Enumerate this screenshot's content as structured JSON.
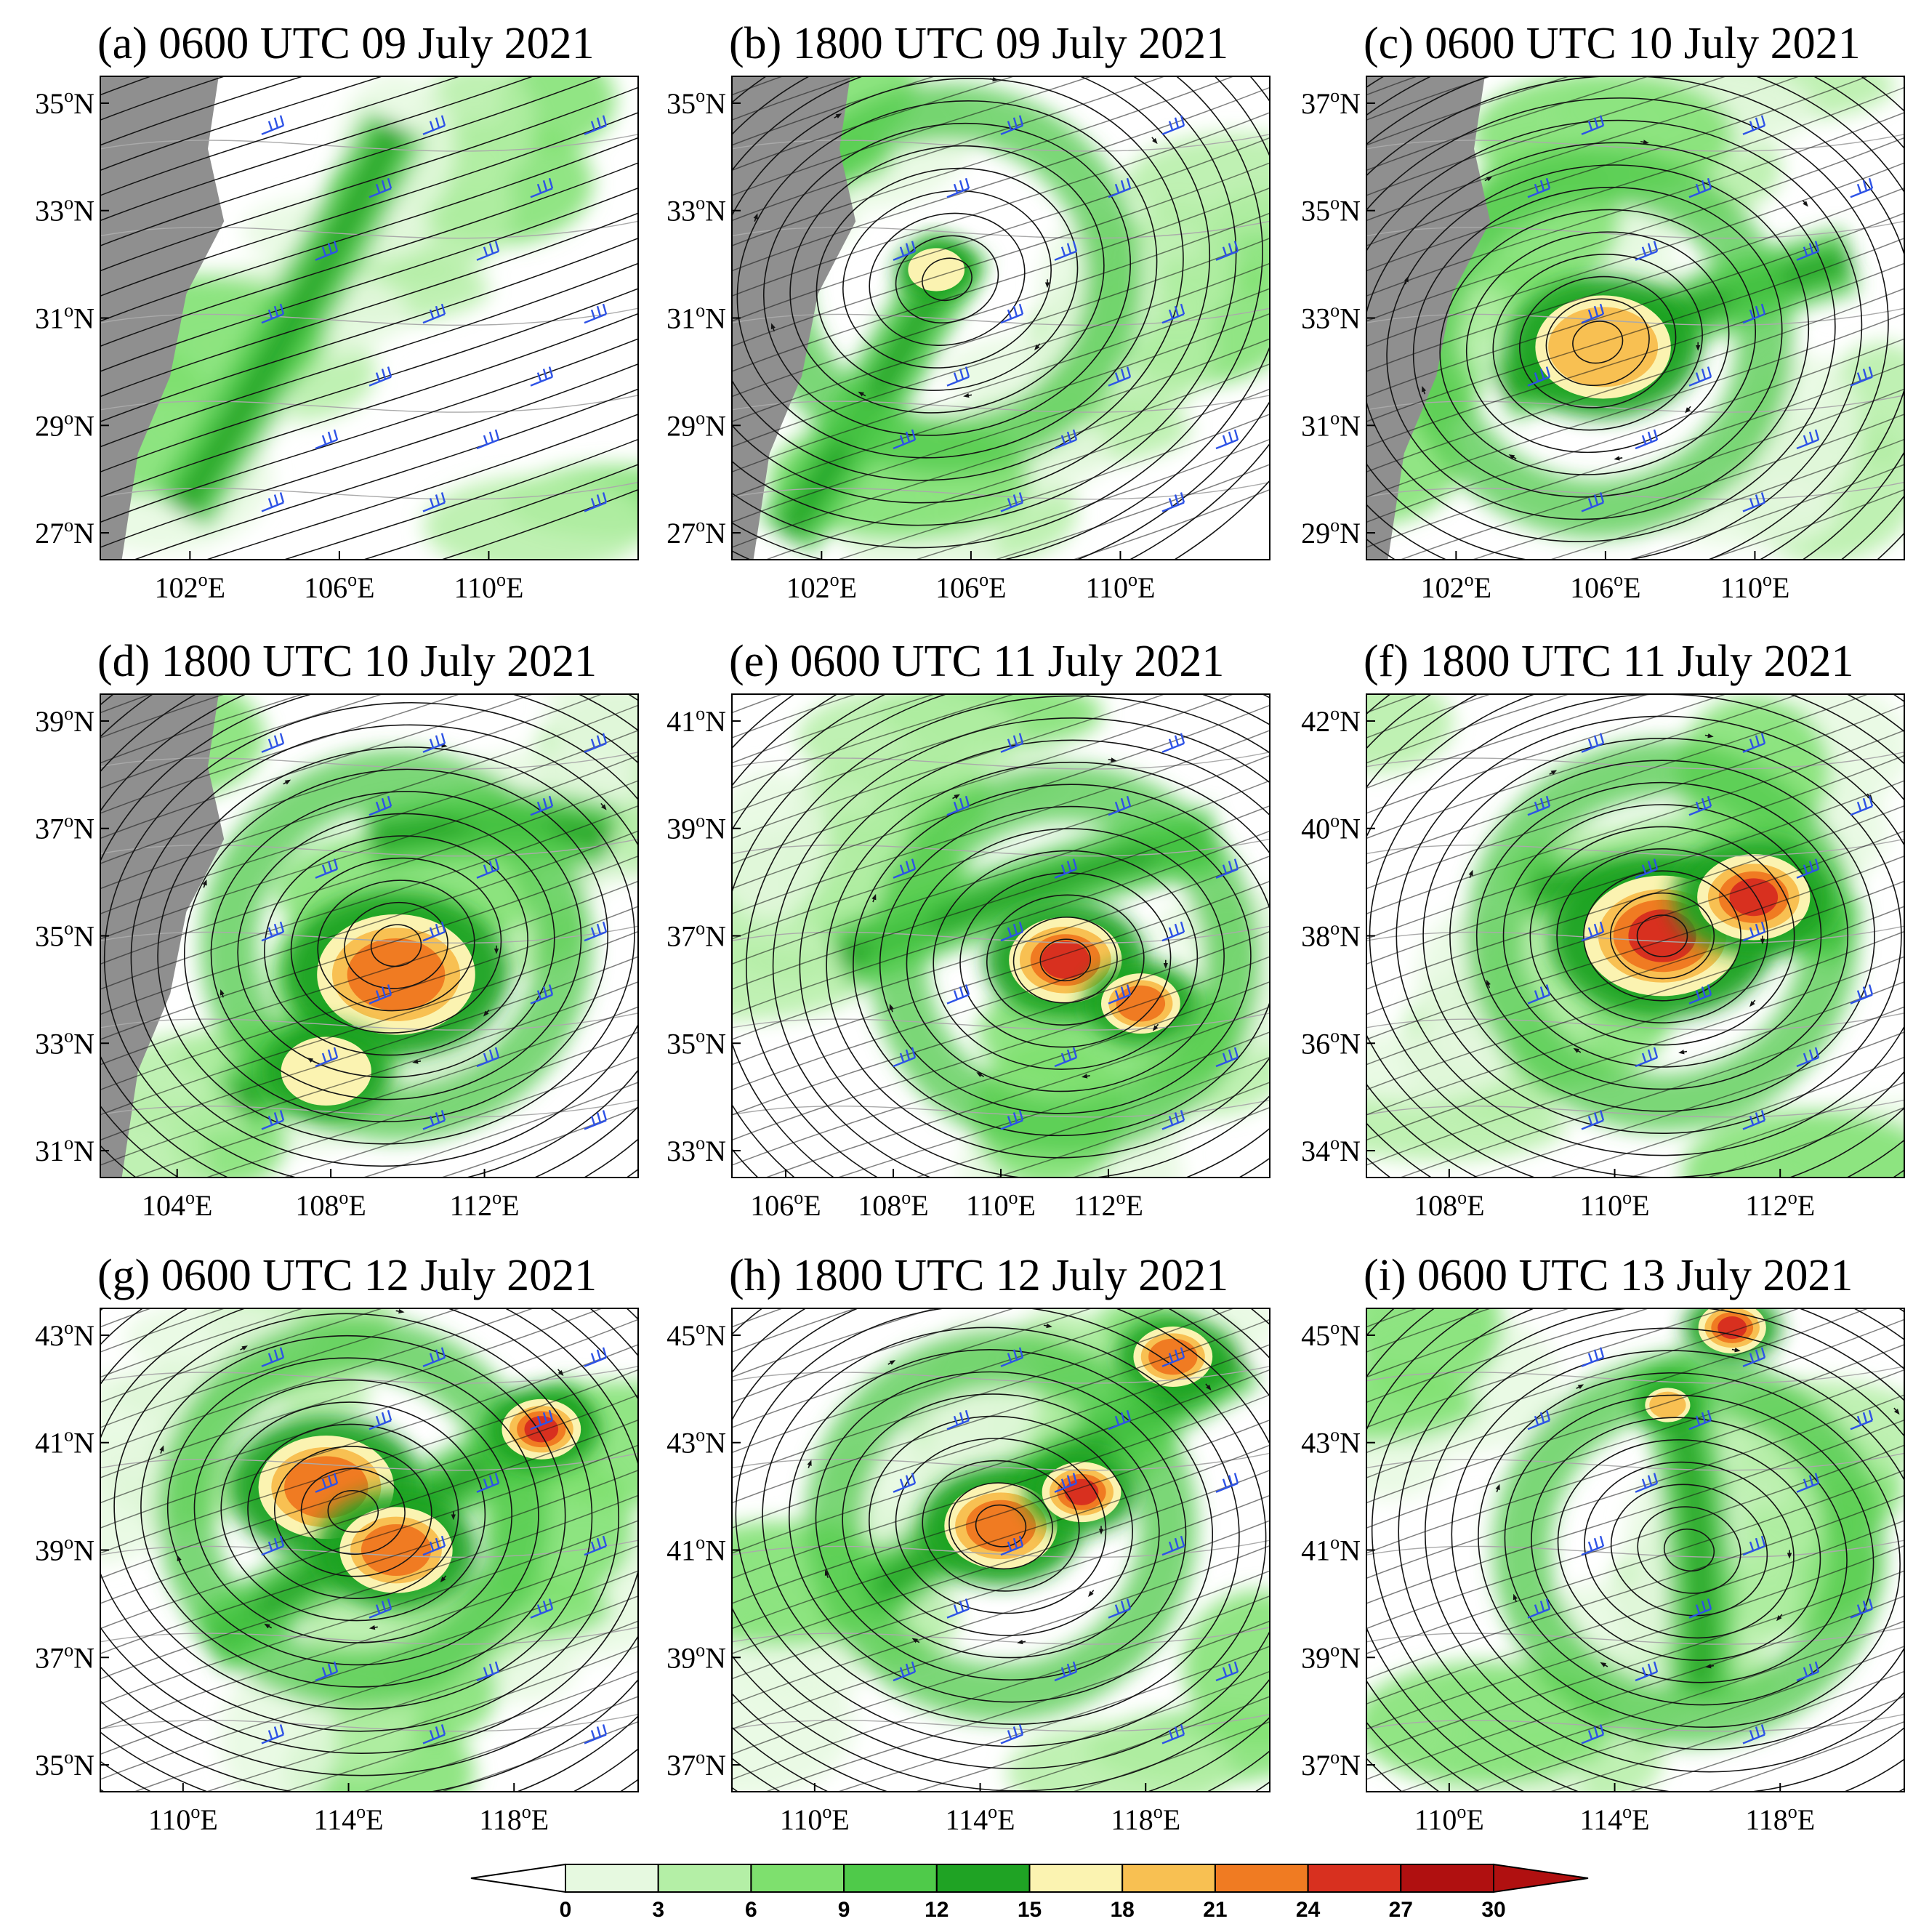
{
  "palette": {
    "map_bg": "#ffffff",
    "terrain": "#8f8f8f",
    "streamline": "#141414",
    "barb": "#2d52e6",
    "border": "#aaaaaa"
  },
  "panels": [
    {
      "label": "(a) 0600 UTC 09 July 2021",
      "lat_ticks": [
        {
          "v": 35,
          "t": "35"
        },
        {
          "v": 33,
          "t": "33"
        },
        {
          "v": 31,
          "t": "31"
        },
        {
          "v": 29,
          "t": "29"
        },
        {
          "v": 27,
          "t": "27"
        }
      ],
      "lon_ticks": [
        {
          "v": 102,
          "t": "102"
        },
        {
          "v": 106,
          "t": "106"
        },
        {
          "v": 110,
          "t": "110"
        }
      ]
    },
    {
      "label": "(b) 1800 UTC 09 July 2021",
      "lat_ticks": [
        {
          "v": 35,
          "t": "35"
        },
        {
          "v": 33,
          "t": "33"
        },
        {
          "v": 31,
          "t": "31"
        },
        {
          "v": 29,
          "t": "29"
        },
        {
          "v": 27,
          "t": "27"
        }
      ],
      "lon_ticks": [
        {
          "v": 102,
          "t": "102"
        },
        {
          "v": 106,
          "t": "106"
        },
        {
          "v": 110,
          "t": "110"
        }
      ]
    },
    {
      "label": "(c) 0600 UTC 10 July 2021",
      "lat_ticks": [
        {
          "v": 37,
          "t": "37"
        },
        {
          "v": 35,
          "t": "35"
        },
        {
          "v": 33,
          "t": "33"
        },
        {
          "v": 31,
          "t": "31"
        },
        {
          "v": 29,
          "t": "29"
        }
      ],
      "lon_ticks": [
        {
          "v": 102,
          "t": "102"
        },
        {
          "v": 106,
          "t": "106"
        },
        {
          "v": 110,
          "t": "110"
        }
      ]
    },
    {
      "label": "(d) 1800 UTC 10 July 2021",
      "lat_ticks": [
        {
          "v": 39,
          "t": "39"
        },
        {
          "v": 37,
          "t": "37"
        },
        {
          "v": 35,
          "t": "35"
        },
        {
          "v": 33,
          "t": "33"
        },
        {
          "v": 31,
          "t": "31"
        }
      ],
      "lon_ticks": [
        {
          "v": 104,
          "t": "104"
        },
        {
          "v": 108,
          "t": "108"
        },
        {
          "v": 112,
          "t": "112"
        }
      ]
    },
    {
      "label": "(e) 0600 UTC 11 July 2021",
      "lat_ticks": [
        {
          "v": 41,
          "t": "41"
        },
        {
          "v": 39,
          "t": "39"
        },
        {
          "v": 37,
          "t": "37"
        },
        {
          "v": 35,
          "t": "35"
        },
        {
          "v": 33,
          "t": "33"
        }
      ],
      "lon_ticks": [
        {
          "v": 106,
          "t": "106"
        },
        {
          "v": 108,
          "t": "108"
        },
        {
          "v": 110,
          "t": "110"
        },
        {
          "v": 112,
          "t": "112"
        }
      ]
    },
    {
      "label": "(f) 1800 UTC 11 July 2021",
      "lat_ticks": [
        {
          "v": 42,
          "t": "42"
        },
        {
          "v": 40,
          "t": "40"
        },
        {
          "v": 38,
          "t": "38"
        },
        {
          "v": 36,
          "t": "36"
        },
        {
          "v": 34,
          "t": "34"
        }
      ],
      "lon_ticks": [
        {
          "v": 108,
          "t": "108"
        },
        {
          "v": 110,
          "t": "110"
        },
        {
          "v": 112,
          "t": "112"
        }
      ]
    },
    {
      "label": "(g) 0600 UTC 12 July 2021",
      "lat_ticks": [
        {
          "v": 43,
          "t": "43"
        },
        {
          "v": 41,
          "t": "41"
        },
        {
          "v": 39,
          "t": "39"
        },
        {
          "v": 37,
          "t": "37"
        },
        {
          "v": 35,
          "t": "35"
        }
      ],
      "lon_ticks": [
        {
          "v": 110,
          "t": "110"
        },
        {
          "v": 114,
          "t": "114"
        },
        {
          "v": 118,
          "t": "118"
        }
      ]
    },
    {
      "label": "(h) 1800 UTC 12 July 2021",
      "lat_ticks": [
        {
          "v": 45,
          "t": "45"
        },
        {
          "v": 43,
          "t": "43"
        },
        {
          "v": 41,
          "t": "41"
        },
        {
          "v": 39,
          "t": "39"
        },
        {
          "v": 37,
          "t": "37"
        }
      ],
      "lon_ticks": [
        {
          "v": 110,
          "t": "110"
        },
        {
          "v": 114,
          "t": "114"
        },
        {
          "v": 118,
          "t": "118"
        }
      ]
    },
    {
      "label": "(i) 0600 UTC 13 July 2021",
      "lat_ticks": [
        {
          "v": 45,
          "t": "45"
        },
        {
          "v": 43,
          "t": "43"
        },
        {
          "v": 41,
          "t": "41"
        },
        {
          "v": 39,
          "t": "39"
        },
        {
          "v": 37,
          "t": "37"
        }
      ],
      "lon_ticks": [
        {
          "v": 110,
          "t": "110"
        },
        {
          "v": 114,
          "t": "114"
        },
        {
          "v": 118,
          "t": "118"
        }
      ]
    }
  ],
  "lat_suffix": "N",
  "lon_suffix": "E",
  "degree_mark": "o",
  "colorbar": {
    "levels": [
      "0",
      "3",
      "6",
      "9",
      "12",
      "15",
      "18",
      "21",
      "24",
      "27",
      "30"
    ],
    "colors": [
      "#e6f9e0",
      "#b4efa6",
      "#7ee06e",
      "#4fca4a",
      "#1fa324",
      "#fbf3b1",
      "#f8c052",
      "#f07b22",
      "#d8301f",
      "#b01010"
    ]
  }
}
